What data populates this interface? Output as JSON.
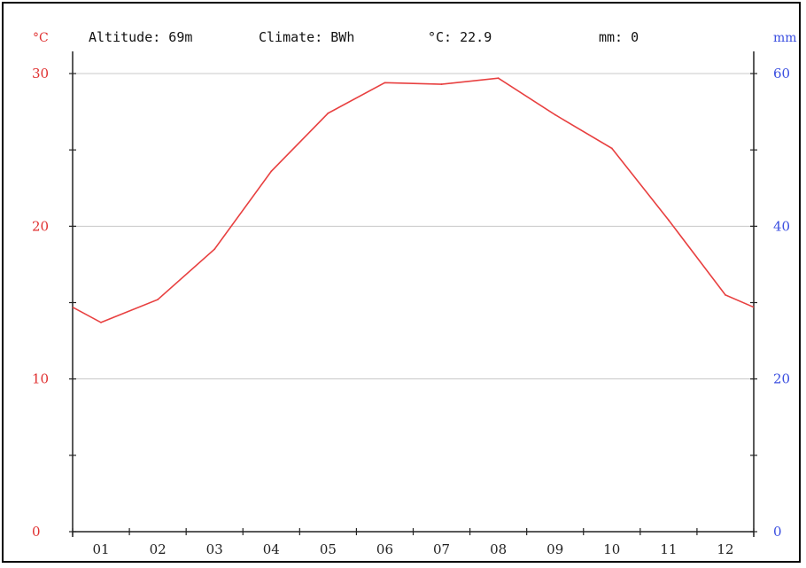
{
  "header": {
    "left_unit": "°C",
    "right_unit": "mm",
    "altitude": "Altitude: 69m",
    "climate": "Climate: BWh",
    "temp_avg": "°C: 22.9",
    "precip_total": "mm: 0"
  },
  "chart_data": {
    "type": "line",
    "categories": [
      "01",
      "02",
      "03",
      "04",
      "05",
      "06",
      "07",
      "08",
      "09",
      "10",
      "11",
      "12"
    ],
    "series": [
      {
        "values": [
          13.7,
          15.2,
          18.5,
          23.6,
          27.4,
          29.4,
          29.3,
          29.7,
          27.3,
          25.1,
          20.4,
          15.5
        ],
        "color": "#e84040"
      }
    ],
    "y_left": {
      "label": "°C",
      "ticks": [
        "0",
        "10",
        "20",
        "30"
      ],
      "range": [
        0,
        30
      ],
      "color": "#e03030"
    },
    "y_right": {
      "label": "mm",
      "ticks": [
        "0",
        "20",
        "40",
        "60"
      ],
      "range": [
        0,
        60
      ],
      "color": "#3a4ee0"
    },
    "grid": true,
    "line_ends_wrap_to": [
      14.7,
      14.7
    ]
  }
}
